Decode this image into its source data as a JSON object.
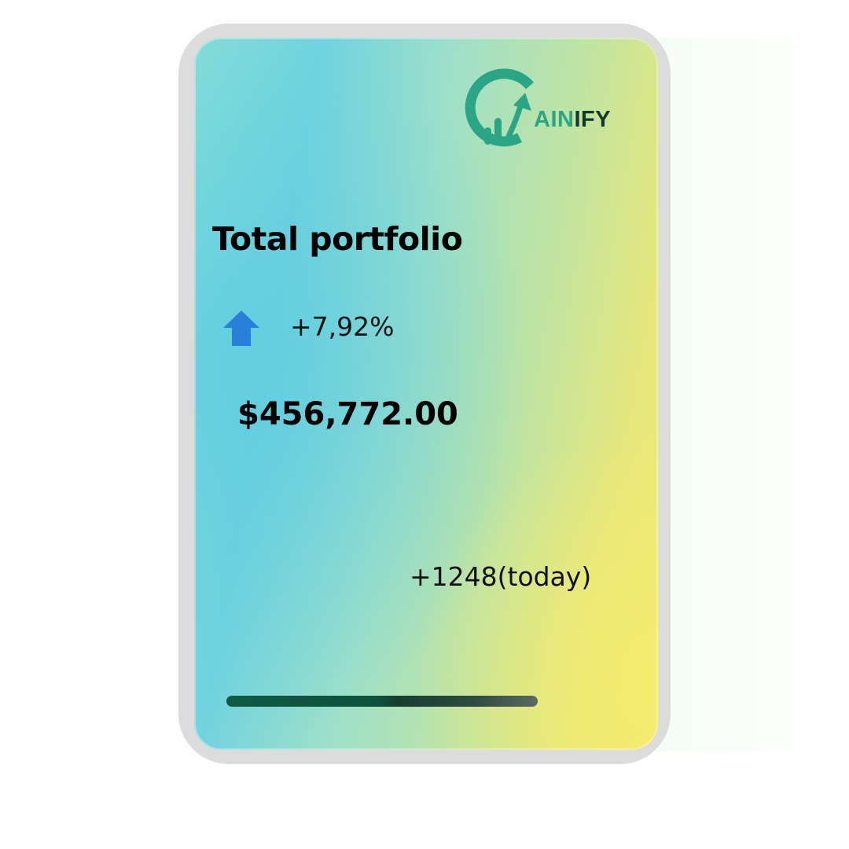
{
  "card": {
    "brand_part1": "AIN",
    "brand_part2": "IFY",
    "title": "Total portfolio",
    "change_percent": "+7,92%",
    "total_value": "$456,772.00",
    "today_change": "+1248(today)",
    "progress_fraction": 1.0
  },
  "icons": {
    "logo": "gainify-logo-icon",
    "trend": "arrow-up-icon"
  },
  "colors": {
    "brand_green": "#2aa586",
    "brand_dark": "#10392c",
    "arrow_blue": "#2a7fd8",
    "bar_dark": "#0e5a43"
  }
}
